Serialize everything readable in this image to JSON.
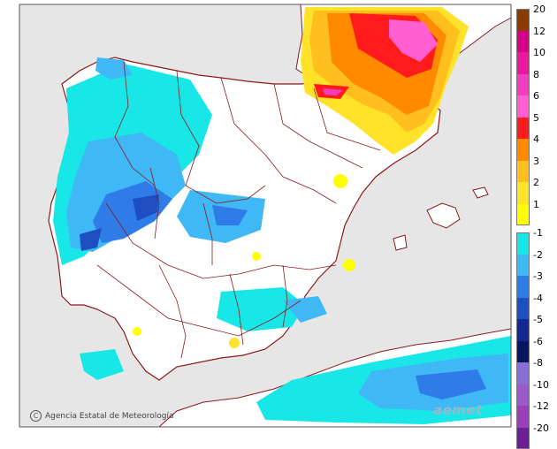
{
  "map": {
    "credit": "Agencia Estatal de Meteorología",
    "brand": "aemet",
    "sea_color": "#e6e6e6",
    "land_color": "#ffffff",
    "boundary_color": "#8b1a1a"
  },
  "legend": {
    "positive": [
      {
        "label": "20",
        "color": "#8b3a00"
      },
      {
        "label": "12",
        "color": "#d60089"
      },
      {
        "label": "10",
        "color": "#e5189f"
      },
      {
        "label": "8",
        "color": "#f03ec0"
      },
      {
        "label": "6",
        "color": "#ff5fd0"
      },
      {
        "label": "5",
        "color": "#ff1b1b"
      },
      {
        "label": "4",
        "color": "#ff8a00"
      },
      {
        "label": "3",
        "color": "#ffbf1f"
      },
      {
        "label": "2",
        "color": "#ffe22a"
      },
      {
        "label": "1",
        "color": "#ffff00"
      }
    ],
    "negative": [
      {
        "label": "-1",
        "color": "#19e6e6"
      },
      {
        "label": "-2",
        "color": "#3fb8f5"
      },
      {
        "label": "-3",
        "color": "#2f7be8"
      },
      {
        "label": "-4",
        "color": "#1d4fc0"
      },
      {
        "label": "-5",
        "color": "#13298f"
      },
      {
        "label": "-6",
        "color": "#0a1560"
      },
      {
        "label": "-8",
        "color": "#8a6ed6"
      },
      {
        "label": "-10",
        "color": "#9b59c9"
      },
      {
        "label": "-12",
        "color": "#9a3fb8"
      },
      {
        "label": "-20",
        "color": "#6e1f96"
      }
    ]
  }
}
